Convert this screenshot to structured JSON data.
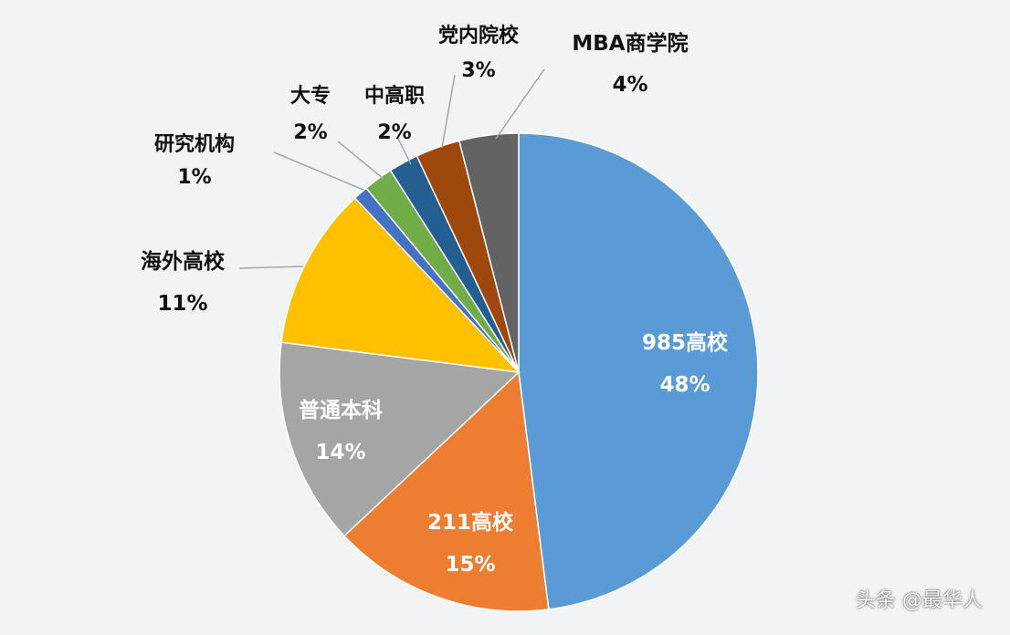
{
  "chart_data": {
    "type": "pie",
    "slices": [
      {
        "label": "985高校",
        "value": 48,
        "value_label": "48%",
        "color": "#5b9bd5"
      },
      {
        "label": "211高校",
        "value": 15,
        "value_label": "15%",
        "color": "#ed7d31"
      },
      {
        "label": "普通本科",
        "value": 14,
        "value_label": "14%",
        "color": "#a5a5a5"
      },
      {
        "label": "海外高校",
        "value": 11,
        "value_label": "11%",
        "color": "#ffc000"
      },
      {
        "label": "研究机构",
        "value": 1,
        "value_label": "1%",
        "color": "#4472c4"
      },
      {
        "label": "大专",
        "value": 2,
        "value_label": "2%",
        "color": "#70ad47"
      },
      {
        "label": "中高职",
        "value": 2,
        "value_label": "2%",
        "color": "#255e91"
      },
      {
        "label": "党内院校",
        "value": 3,
        "value_label": "3%",
        "color": "#9e480e"
      },
      {
        "label": "MBA商学院",
        "value": 4,
        "value_label": "4%",
        "color": "#636363"
      }
    ]
  },
  "watermark": "头条 @最华人"
}
